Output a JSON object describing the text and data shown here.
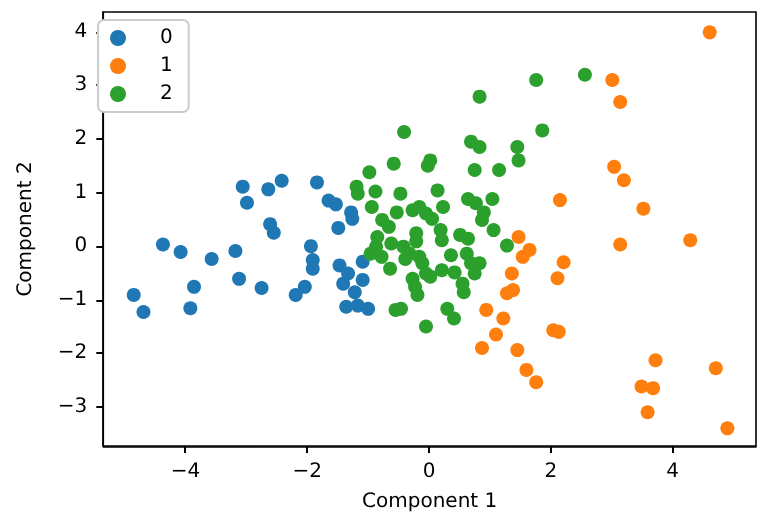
{
  "chart_data": {
    "type": "scatter",
    "xlabel": "Component 1",
    "ylabel": "Component 2",
    "xlim": [
      -5.35,
      5.37
    ],
    "ylim": [
      -3.73,
      4.37
    ],
    "xticks": [
      -4,
      -2,
      0,
      2,
      4
    ],
    "yticks": [
      -3,
      -2,
      -1,
      0,
      1,
      2,
      3,
      4
    ],
    "grid": false,
    "legend": "top left",
    "marker": "circle",
    "series": [
      {
        "name": "0",
        "color": "#1f77b4",
        "x": [
          -4.85,
          -4.69,
          -4.37,
          -4.08,
          -3.86,
          -3.92,
          -3.57,
          -3.18,
          -3.12,
          -3.06,
          -2.99,
          -2.75,
          -2.64,
          -2.61,
          -2.55,
          -2.42,
          -2.19,
          -2.04,
          -1.94,
          -1.91,
          -1.91,
          -1.84,
          -1.65,
          -1.53,
          -1.28,
          -1.26,
          -1.49,
          -1.47,
          -1.33,
          -1.41,
          -1.22,
          -1.09,
          -1.09,
          -1.36,
          -1.17,
          -1.0
        ],
        "values": [
          -0.91,
          -1.23,
          0.03,
          -0.11,
          -0.76,
          -1.16,
          -0.24,
          -0.09,
          -0.61,
          1.11,
          0.81,
          -0.78,
          1.06,
          0.41,
          0.25,
          1.22,
          -0.91,
          -0.76,
          0.0,
          -0.26,
          -0.42,
          1.19,
          0.85,
          0.78,
          0.63,
          0.51,
          0.34,
          -0.36,
          -0.51,
          -0.7,
          -0.86,
          -0.29,
          -0.63,
          -1.13,
          -1.11,
          -1.17
        ]
      },
      {
        "name": "1",
        "color": "#ff7f0e",
        "x": [
          1.47,
          1.54,
          1.65,
          1.36,
          1.38,
          1.28,
          0.94,
          1.22,
          1.1,
          0.87,
          1.45,
          1.6,
          1.76,
          4.61,
          3.01,
          3.14,
          3.04,
          3.2,
          3.52,
          2.15,
          3.14,
          4.29,
          2.21,
          2.11,
          2.04,
          2.13,
          3.72,
          4.71,
          3.49,
          3.68,
          3.59,
          4.9
        ],
        "values": [
          0.17,
          -0.2,
          -0.07,
          -0.51,
          -0.82,
          -0.88,
          -1.19,
          -1.35,
          -1.65,
          -1.9,
          -1.94,
          -2.31,
          -2.54,
          3.99,
          3.1,
          2.69,
          1.48,
          1.23,
          0.7,
          0.86,
          0.03,
          0.11,
          -0.3,
          -0.6,
          -1.57,
          -1.6,
          -2.13,
          -2.28,
          -2.62,
          -2.65,
          -3.1,
          -3.4
        ]
      },
      {
        "name": "2",
        "color": "#2ca02c",
        "x": [
          -1.19,
          -1.17,
          -0.98,
          -0.88,
          -0.94,
          -0.77,
          -0.66,
          -0.78,
          -0.96,
          -0.87,
          -0.62,
          -0.58,
          -0.41,
          -0.47,
          -0.53,
          -0.27,
          -0.16,
          -0.05,
          0.05,
          -0.02,
          0.02,
          0.14,
          0.23,
          0.19,
          0.21,
          -0.21,
          -0.21,
          -0.42,
          -0.32,
          -0.39,
          -0.64,
          -0.16,
          -0.11,
          -0.05,
          -0.27,
          -0.23,
          -0.19,
          0.02,
          0.21,
          0.36,
          0.42,
          0.55,
          0.57,
          0.51,
          0.64,
          0.62,
          0.69,
          0.75,
          0.83,
          -0.55,
          -0.46,
          -0.05,
          0.3,
          0.41,
          0.64,
          0.77,
          0.9,
          0.87,
          1.04,
          1.06,
          1.28,
          0.69,
          0.83,
          0.75,
          0.83,
          1.15,
          1.45,
          1.47,
          1.76,
          1.86,
          -0.85,
          2.56
        ],
        "values": [
          1.11,
          0.98,
          1.38,
          1.02,
          0.73,
          0.49,
          0.36,
          -0.2,
          -0.14,
          -0.01,
          0.05,
          1.54,
          2.13,
          0.98,
          0.63,
          0.67,
          0.73,
          0.61,
          0.51,
          1.5,
          1.6,
          1.04,
          0.73,
          0.3,
          0.11,
          0.24,
          0.09,
          -0.01,
          -0.14,
          -0.24,
          -0.42,
          -0.2,
          -0.32,
          -0.51,
          -0.61,
          -0.76,
          -0.91,
          -0.57,
          -0.45,
          -0.17,
          -0.49,
          -0.7,
          -0.86,
          0.21,
          0.14,
          -0.14,
          -0.32,
          -0.51,
          -0.32,
          -1.19,
          -1.17,
          -1.5,
          -1.17,
          -1.35,
          0.88,
          0.8,
          0.63,
          0.49,
          0.88,
          0.3,
          0.01,
          1.95,
          1.85,
          1.42,
          2.79,
          1.42,
          1.85,
          1.6,
          3.1,
          2.16,
          0.17,
          3.2
        ]
      }
    ]
  }
}
